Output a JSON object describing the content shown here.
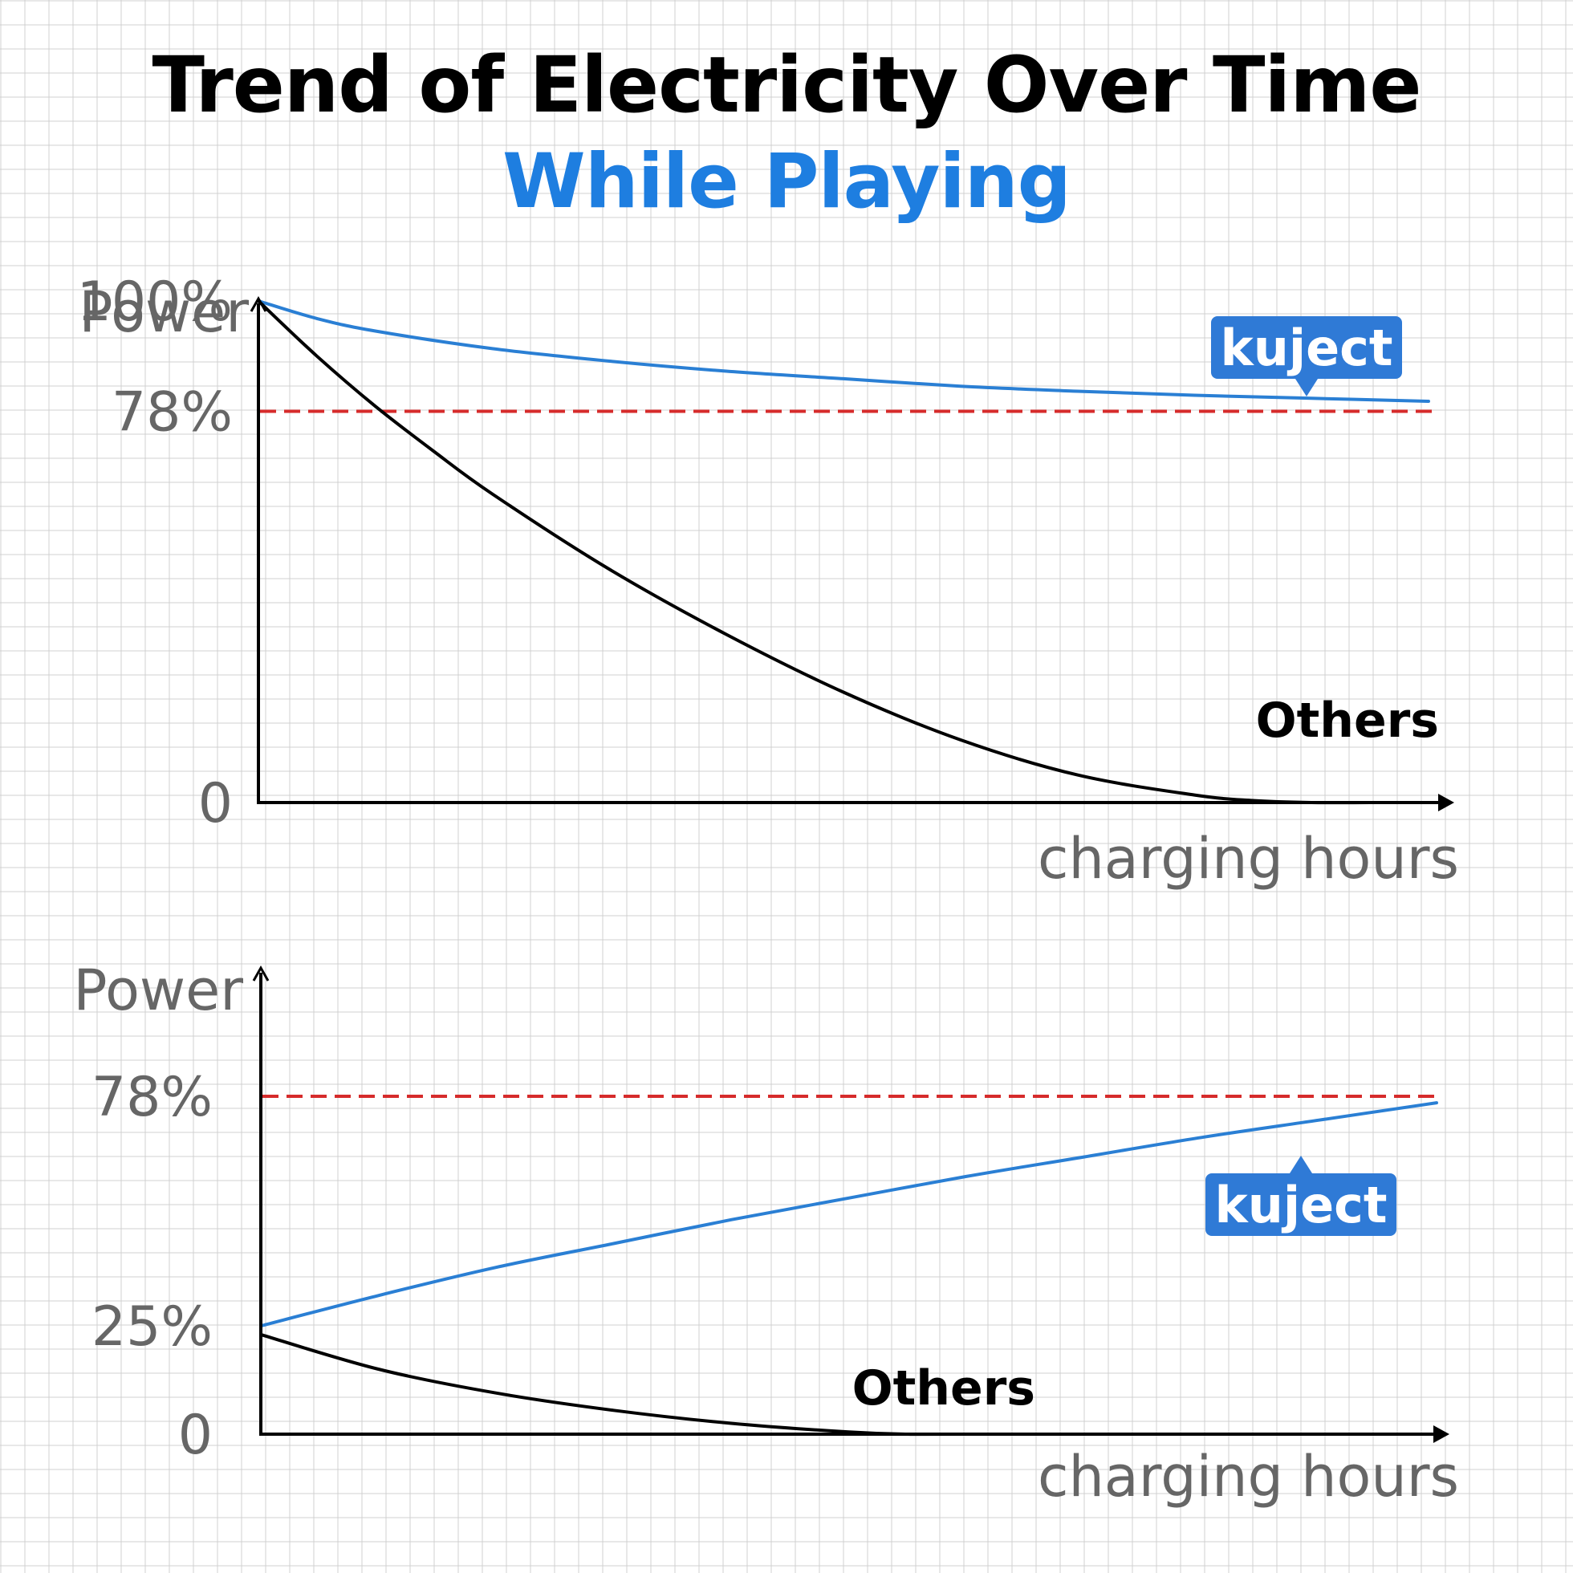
{
  "header": {
    "title": "Trend of Electricity Over Time",
    "subtitle": "While Playing"
  },
  "colors": {
    "kuject": "#2a7fd4",
    "others": "#000000",
    "threshold": "#d62b2b",
    "badge": "#2f7ad6",
    "subtitle": "#1e7ee0"
  },
  "chart_data": [
    {
      "type": "line",
      "ylabel": "Power",
      "xlabel": "charging hours",
      "yticks": [
        {
          "value": 100,
          "label": "100%"
        },
        {
          "value": 78,
          "label": "78%"
        },
        {
          "value": 0,
          "label": "0"
        }
      ],
      "ylim": [
        0,
        100
      ],
      "xlim": [
        0,
        100
      ],
      "grid": false,
      "reference_line": {
        "value": 78,
        "style": "dashed",
        "color": "#d62b2b"
      },
      "series": [
        {
          "name": "kuject",
          "label": "kuject",
          "label_style": "badge",
          "x": [
            0,
            5,
            10,
            20,
            30,
            40,
            50,
            60,
            70,
            80,
            90,
            100
          ],
          "y": [
            100,
            96.5,
            94,
            90.5,
            88,
            86,
            84.5,
            83,
            82,
            81.2,
            80.6,
            80
          ]
        },
        {
          "name": "Others",
          "label": "Others",
          "label_style": "text",
          "x": [
            0,
            5,
            10,
            15,
            20,
            30,
            40,
            50,
            60,
            70,
            80,
            85,
            90,
            95,
            100
          ],
          "y": [
            100,
            89,
            79,
            70,
            61.5,
            46.5,
            33.5,
            22,
            12.5,
            5.5,
            1.5,
            0.4,
            0,
            0,
            0
          ]
        }
      ]
    },
    {
      "type": "line",
      "ylabel": "Power",
      "xlabel": "charging hours",
      "yticks": [
        {
          "value": 78,
          "label": "78%"
        },
        {
          "value": 25,
          "label": "25%"
        },
        {
          "value": 0,
          "label": "0"
        }
      ],
      "ylim": [
        0,
        100
      ],
      "xlim": [
        0,
        100
      ],
      "grid": false,
      "reference_line": {
        "value": 78,
        "style": "dashed",
        "color": "#d62b2b"
      },
      "series": [
        {
          "name": "kuject",
          "label": "kuject",
          "label_style": "badge",
          "x": [
            0,
            10,
            20,
            30,
            40,
            50,
            60,
            70,
            80,
            90,
            100
          ],
          "y": [
            25,
            32,
            38.5,
            44,
            49.5,
            54.5,
            59.5,
            64,
            68.5,
            72.5,
            76.5
          ]
        },
        {
          "name": "Others",
          "label": "Others",
          "label_style": "text",
          "x": [
            0,
            10,
            20,
            30,
            40,
            50,
            55,
            60,
            100
          ],
          "y": [
            23,
            15,
            9.5,
            5.5,
            2.5,
            0.5,
            0,
            0,
            0
          ]
        }
      ]
    }
  ]
}
